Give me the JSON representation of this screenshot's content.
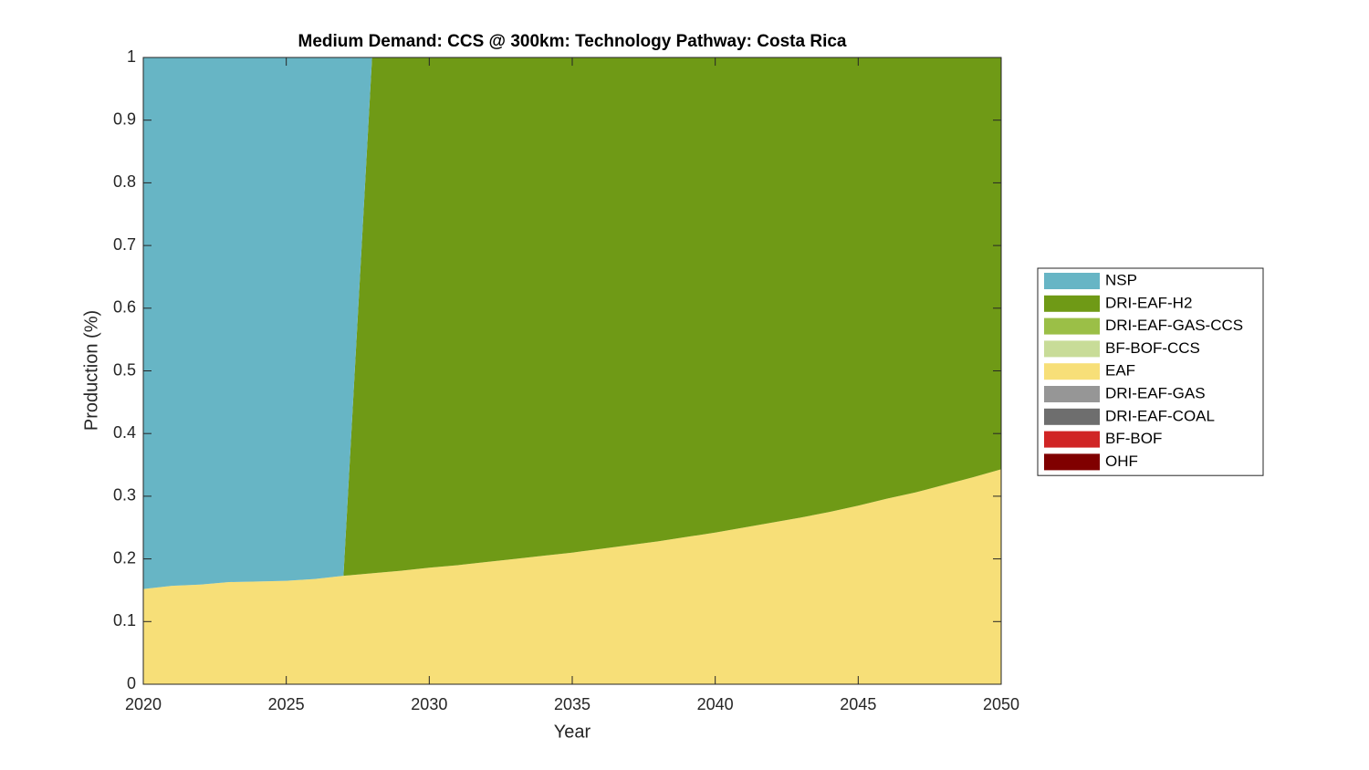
{
  "chart_data": {
    "type": "stacked_area",
    "title": "Medium Demand: CCS @ 300km: Technology Pathway: Costa Rica",
    "xlabel": "Year",
    "ylabel": "Production (%)",
    "x": [
      2020,
      2021,
      2022,
      2023,
      2024,
      2025,
      2026,
      2027,
      2028,
      2029,
      2030,
      2031,
      2032,
      2033,
      2034,
      2035,
      2036,
      2037,
      2038,
      2039,
      2040,
      2041,
      2042,
      2043,
      2044,
      2045,
      2046,
      2047,
      2048,
      2049,
      2050
    ],
    "xlim": [
      2020,
      2050
    ],
    "xticks": [
      2020,
      2025,
      2030,
      2035,
      2040,
      2045,
      2050
    ],
    "ylim": [
      0,
      1
    ],
    "yticks": [
      0,
      0.1,
      0.2,
      0.3,
      0.4,
      0.5,
      0.6,
      0.7,
      0.8,
      0.9,
      1
    ],
    "legend": "right",
    "series": [
      {
        "name": "NSP",
        "color": "#67b5c5",
        "values": [
          0.848,
          0.843,
          0.841,
          0.837,
          0.836,
          0.835,
          0.832,
          0.827,
          0,
          0,
          0,
          0,
          0,
          0,
          0,
          0,
          0,
          0,
          0,
          0,
          0,
          0,
          0,
          0,
          0,
          0,
          0,
          0,
          0,
          0,
          0
        ]
      },
      {
        "name": "DRI-EAF-H2",
        "color": "#6f9a16",
        "values": [
          0,
          0,
          0,
          0,
          0,
          0,
          0,
          0,
          0.823,
          0.819,
          0.814,
          0.81,
          0.805,
          0.8,
          0.795,
          0.79,
          0.784,
          0.778,
          0.772,
          0.765,
          0.758,
          0.75,
          0.742,
          0.734,
          0.725,
          0.715,
          0.704,
          0.694,
          0.682,
          0.67,
          0.657
        ]
      },
      {
        "name": "DRI-EAF-GAS-CCS",
        "color": "#9bbf47",
        "values": [
          0,
          0,
          0,
          0,
          0,
          0,
          0,
          0,
          0,
          0,
          0,
          0,
          0,
          0,
          0,
          0,
          0,
          0,
          0,
          0,
          0,
          0,
          0,
          0,
          0,
          0,
          0,
          0,
          0,
          0,
          0
        ]
      },
      {
        "name": "BF-BOF-CCS",
        "color": "#c8dc98",
        "values": [
          0,
          0,
          0,
          0,
          0,
          0,
          0,
          0,
          0,
          0,
          0,
          0,
          0,
          0,
          0,
          0,
          0,
          0,
          0,
          0,
          0,
          0,
          0,
          0,
          0,
          0,
          0,
          0,
          0,
          0,
          0
        ]
      },
      {
        "name": "EAF",
        "color": "#f7df78",
        "values": [
          0.152,
          0.157,
          0.159,
          0.163,
          0.164,
          0.165,
          0.168,
          0.173,
          0.177,
          0.181,
          0.186,
          0.19,
          0.195,
          0.2,
          0.205,
          0.21,
          0.216,
          0.222,
          0.228,
          0.235,
          0.242,
          0.25,
          0.258,
          0.266,
          0.275,
          0.285,
          0.296,
          0.306,
          0.318,
          0.33,
          0.343
        ]
      },
      {
        "name": "DRI-EAF-GAS",
        "color": "#969696",
        "values": [
          0,
          0,
          0,
          0,
          0,
          0,
          0,
          0,
          0,
          0,
          0,
          0,
          0,
          0,
          0,
          0,
          0,
          0,
          0,
          0,
          0,
          0,
          0,
          0,
          0,
          0,
          0,
          0,
          0,
          0,
          0
        ]
      },
      {
        "name": "DRI-EAF-COAL",
        "color": "#6e6e6e",
        "values": [
          0,
          0,
          0,
          0,
          0,
          0,
          0,
          0,
          0,
          0,
          0,
          0,
          0,
          0,
          0,
          0,
          0,
          0,
          0,
          0,
          0,
          0,
          0,
          0,
          0,
          0,
          0,
          0,
          0,
          0,
          0
        ]
      },
      {
        "name": "BF-BOF",
        "color": "#d02525",
        "values": [
          0,
          0,
          0,
          0,
          0,
          0,
          0,
          0,
          0,
          0,
          0,
          0,
          0,
          0,
          0,
          0,
          0,
          0,
          0,
          0,
          0,
          0,
          0,
          0,
          0,
          0,
          0,
          0,
          0,
          0,
          0
        ]
      },
      {
        "name": "OHF",
        "color": "#800000",
        "values": [
          0,
          0,
          0,
          0,
          0,
          0,
          0,
          0,
          0,
          0,
          0,
          0,
          0,
          0,
          0,
          0,
          0,
          0,
          0,
          0,
          0,
          0,
          0,
          0,
          0,
          0,
          0,
          0,
          0,
          0,
          0
        ]
      }
    ]
  }
}
